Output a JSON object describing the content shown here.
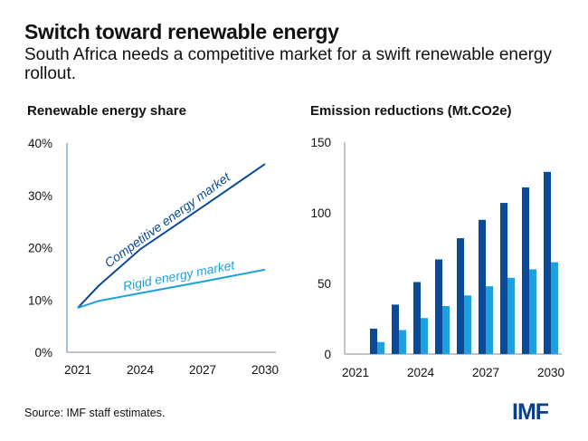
{
  "title": "Switch toward renewable energy",
  "subtitle": "South Africa needs a competitive market for a swift renewable energy rollout.",
  "source": "Source: IMF staff estimates.",
  "logo": "IMF",
  "colors": {
    "dark": "#0b4a96",
    "light": "#1ea0dc"
  },
  "chart_data": [
    {
      "type": "line",
      "title": "Renewable energy share",
      "x": [
        2021,
        2022,
        2024,
        2027,
        2030
      ],
      "xticks": [
        "2021",
        "2024",
        "2027",
        "2030"
      ],
      "yticks": [
        "0%",
        "10%",
        "20%",
        "30%",
        "40%"
      ],
      "ylim": [
        0,
        40
      ],
      "xlim": [
        2021,
        2030
      ],
      "series": [
        {
          "name": "Competitive energy market",
          "values": [
            8.5,
            12.7,
            19.7,
            27.8,
            36
          ]
        },
        {
          "name": "Rigid energy market",
          "values": [
            8.5,
            9.8,
            11.3,
            13.5,
            15.8
          ]
        }
      ]
    },
    {
      "type": "bar",
      "title": "Emission reductions (Mt.CO2e)",
      "categories": [
        2021,
        2022,
        2023,
        2024,
        2025,
        2026,
        2027,
        2028,
        2029,
        2030
      ],
      "xticks": [
        "2021",
        "2024",
        "2027",
        "2030"
      ],
      "yticks": [
        "0",
        "50",
        "100",
        "150"
      ],
      "ylim": [
        0,
        150
      ],
      "series": [
        {
          "values": [
            0,
            18,
            35,
            51,
            67,
            82,
            95,
            107,
            118,
            129
          ]
        },
        {
          "values": [
            0,
            8.5,
            17,
            25.5,
            34,
            41.5,
            48,
            54,
            60,
            65
          ]
        }
      ]
    }
  ]
}
